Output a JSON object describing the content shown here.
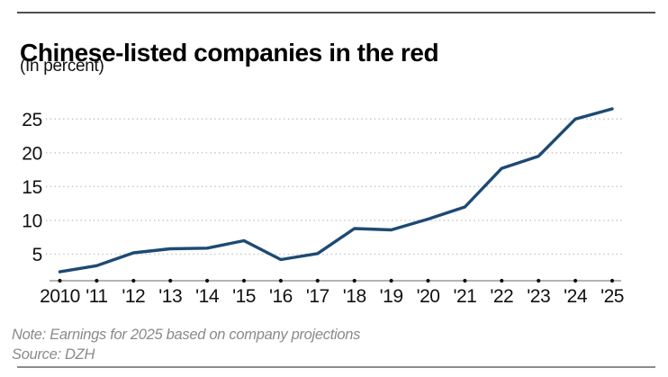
{
  "header": {
    "title": "Chinese-listed companies in the red",
    "subtitle": "(In percent)"
  },
  "footer": {
    "note": "Note: Earnings for 2025 based on company projections",
    "source": "Source: DZH"
  },
  "colors": {
    "line": "#1d4a73",
    "gridline": "#c6c6c6",
    "axis_line": "#9c9c9c",
    "tick_dot": "#111111",
    "axis_label": "#111111",
    "note_text": "#8a8a8a"
  },
  "chart_data": {
    "type": "line",
    "title": "Chinese-listed companies in the red",
    "subtitle": "(In percent)",
    "ylabel": "percent",
    "x": [
      2010,
      2011,
      2012,
      2013,
      2014,
      2015,
      2016,
      2017,
      2018,
      2019,
      2020,
      2021,
      2022,
      2023,
      2024,
      2025
    ],
    "x_tick_labels": [
      "2010",
      "'11",
      "'12",
      "'13",
      "'14",
      "'15",
      "'16",
      "'17",
      "'18",
      "'19",
      "'20",
      "'21",
      "'22",
      "'23",
      "'24",
      "'25"
    ],
    "values": [
      2.4,
      3.3,
      5.2,
      5.8,
      5.9,
      7.0,
      4.2,
      5.1,
      8.8,
      8.6,
      10.2,
      12.0,
      17.7,
      19.5,
      25.0,
      26.5
    ],
    "y_ticks": [
      5,
      10,
      15,
      20,
      25
    ],
    "ylim": [
      1,
      27.5
    ],
    "grid": "horizontal-dotted",
    "legend": "none",
    "note": "Note: Earnings for 2025 based on company projections",
    "source": "Source: DZH"
  }
}
